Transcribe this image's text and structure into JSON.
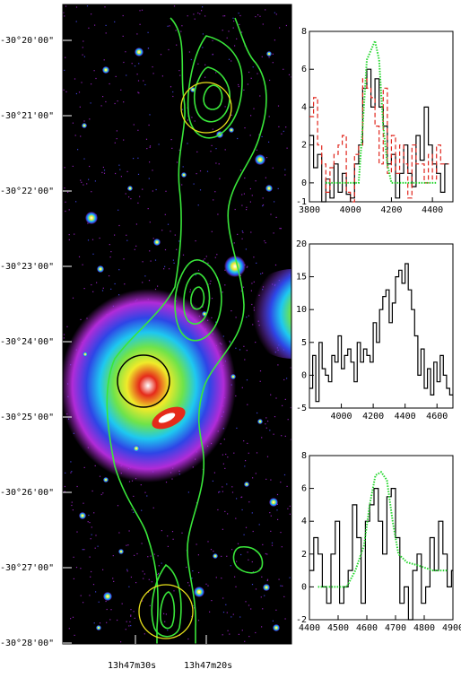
{
  "figure": {
    "dec_labels": [
      "-30°20'00\"",
      "-30°21'00\"",
      "-30°22'00\"",
      "-30°23'00\"",
      "-30°24'00\"",
      "-30°25'00\"",
      "-30°26'00\"",
      "-30°27'00\"",
      "-30°28'00\""
    ],
    "ra_labels": [
      "13h47m30s",
      "13h47m20s"
    ],
    "colors": {
      "background": "#000000",
      "halo_magenta": "#b12bd8",
      "halo_blue": "#2e45e6",
      "halo_cyan": "#1ec8f0",
      "halo_green": "#6fe34a",
      "halo_yellow": "#f0ea2a",
      "halo_red": "#e52a1a",
      "contour": "#39e63a",
      "yellow_circle": "#e8e21a",
      "black_circle": "#000000",
      "spectrum_black": "#000000",
      "spectrum_red": "#e0241b",
      "spectrum_green": "#22d62b"
    }
  },
  "chart_data": [
    {
      "type": "line",
      "panel": "top",
      "xlim": [
        3800,
        4500
      ],
      "ylim": [
        -1,
        8
      ],
      "xticks": [
        3800,
        4000,
        4200,
        4400
      ],
      "yticks": [
        -1,
        0,
        2,
        4,
        6,
        8
      ],
      "series": [
        {
          "style": "black-step",
          "x": [
            3800,
            3820,
            3840,
            3860,
            3880,
            3900,
            3920,
            3940,
            3960,
            3980,
            4000,
            4020,
            4040,
            4060,
            4080,
            4100,
            4120,
            4140,
            4160,
            4180,
            4200,
            4220,
            4240,
            4260,
            4280,
            4300,
            4320,
            4340,
            4360,
            4380,
            4400,
            4420,
            4440,
            4460
          ],
          "y": [
            2.5,
            0.8,
            1.5,
            -1,
            0.2,
            -0.8,
            1,
            -0.5,
            0.5,
            -0.6,
            -0.8,
            1,
            2,
            5,
            6,
            4,
            5.5,
            4,
            3,
            1,
            1.5,
            -0.8,
            0.5,
            2,
            0.5,
            -0.2,
            2.5,
            1.2,
            4,
            2,
            1,
            0.5,
            -0.5,
            1
          ]
        },
        {
          "style": "red-dashed-step",
          "x": [
            3800,
            3820,
            3840,
            3860,
            3880,
            3900,
            3920,
            3940,
            3960,
            3980,
            4000,
            4020,
            4040,
            4060,
            4080,
            4100,
            4120,
            4140,
            4160,
            4180,
            4200,
            4220,
            4240,
            4260,
            4280,
            4300,
            4320,
            4340,
            4360,
            4380,
            4400,
            4420,
            4440,
            4460
          ],
          "y": [
            3.5,
            4.5,
            2,
            1,
            -0.5,
            0.8,
            1.5,
            2,
            2.5,
            -0.5,
            -1,
            1.5,
            2,
            5.5,
            5,
            4.5,
            3,
            1,
            5,
            0.5,
            2.5,
            0.5,
            2,
            1,
            -0.8,
            2,
            1,
            1,
            0,
            1.5,
            0.2,
            2,
            1,
            1
          ]
        },
        {
          "style": "green-dotted",
          "x": [
            3880,
            3940,
            4000,
            4040,
            4060,
            4080,
            4100,
            4120,
            4140,
            4160,
            4180,
            4200,
            4220,
            4260,
            4320,
            4380,
            4420
          ],
          "y": [
            0,
            0,
            0,
            0,
            3,
            6.5,
            7,
            7.5,
            6.5,
            3,
            1,
            0,
            0,
            0,
            0,
            0,
            0
          ]
        }
      ]
    },
    {
      "type": "line",
      "panel": "middle",
      "xlim": [
        3800,
        4700
      ],
      "ylim": [
        -5,
        20
      ],
      "xticks": [
        4000,
        4200,
        4400,
        4600
      ],
      "yticks": [
        -5,
        0,
        5,
        10,
        15,
        20
      ],
      "series": [
        {
          "style": "black-step",
          "x": [
            3800,
            3820,
            3840,
            3860,
            3880,
            3900,
            3920,
            3940,
            3960,
            3980,
            4000,
            4020,
            4040,
            4060,
            4080,
            4100,
            4120,
            4140,
            4160,
            4180,
            4200,
            4220,
            4240,
            4260,
            4280,
            4300,
            4320,
            4340,
            4360,
            4380,
            4400,
            4420,
            4440,
            4460,
            4480,
            4500,
            4520,
            4540,
            4560,
            4580,
            4600,
            4620,
            4640,
            4660,
            4680
          ],
          "y": [
            -2,
            3,
            -4,
            5,
            1,
            0,
            -1,
            3,
            2,
            6,
            1,
            3,
            4,
            2,
            -1,
            5,
            2,
            4,
            3,
            2,
            8,
            5,
            10,
            12,
            13,
            8,
            11,
            15,
            16,
            14,
            17,
            13,
            10,
            6,
            0,
            4,
            -2,
            1,
            -3,
            2,
            -1,
            3,
            0,
            -2,
            -3
          ]
        }
      ]
    },
    {
      "type": "line",
      "panel": "bottom",
      "xlim": [
        4400,
        4900
      ],
      "ylim": [
        -2,
        8
      ],
      "xticks": [
        4400,
        4500,
        4600,
        4700,
        4800,
        4900
      ],
      "yticks": [
        -2,
        0,
        2,
        4,
        6,
        8
      ],
      "series": [
        {
          "style": "black-step",
          "x": [
            4400,
            4415,
            4430,
            4445,
            4460,
            4475,
            4490,
            4505,
            4520,
            4535,
            4550,
            4565,
            4580,
            4595,
            4610,
            4625,
            4640,
            4655,
            4670,
            4685,
            4700,
            4715,
            4730,
            4745,
            4760,
            4775,
            4790,
            4805,
            4820,
            4835,
            4850,
            4865,
            4880,
            4895
          ],
          "y": [
            1,
            3,
            2,
            0,
            -1,
            2,
            4,
            -1,
            0,
            1,
            5,
            3,
            -1,
            4,
            5,
            6,
            4,
            2,
            5.5,
            6,
            3,
            -1,
            0,
            -2,
            1,
            2,
            -1,
            0,
            3,
            1,
            4,
            2,
            0,
            1
          ]
        },
        {
          "style": "green-dotted",
          "x": [
            4430,
            4480,
            4530,
            4560,
            4590,
            4610,
            4630,
            4650,
            4670,
            4690,
            4710,
            4740,
            4780,
            4830,
            4880
          ],
          "y": [
            0,
            0,
            0,
            1,
            2.5,
            5,
            6.8,
            7,
            6.5,
            4,
            2,
            1.5,
            1.3,
            1,
            1
          ]
        }
      ]
    }
  ]
}
